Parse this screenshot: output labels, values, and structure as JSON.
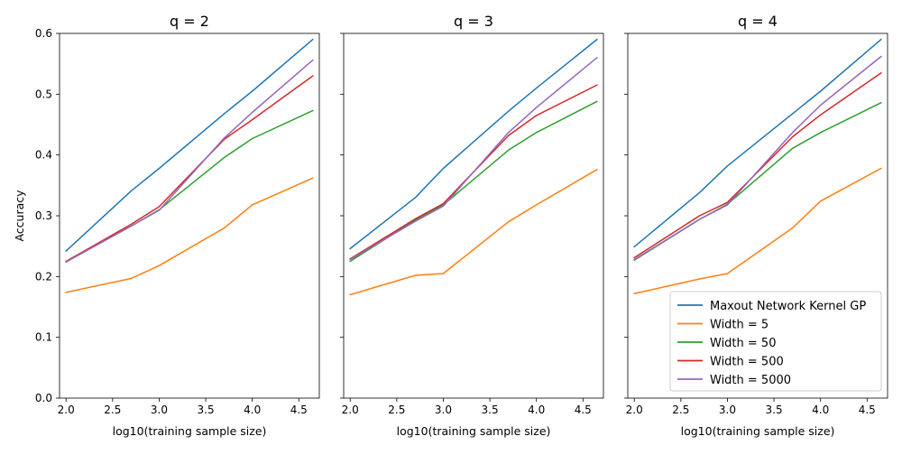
{
  "chart_data": {
    "type": "line",
    "ylabel": "Accuracy",
    "xlabel": "log10(training sample size)",
    "xlim": [
      1.93,
      4.72
    ],
    "ylim": [
      0.0,
      0.6
    ],
    "xticks": [
      "2.0",
      "2.5",
      "3.0",
      "3.5",
      "4.0",
      "4.5"
    ],
    "yticks": [
      "0.0",
      "0.1",
      "0.2",
      "0.3",
      "0.4",
      "0.5",
      "0.6"
    ],
    "legend_location": "lower-right (third panel)",
    "legend": [
      {
        "name": "Maxout Network Kernel GP",
        "color": "#1f77b4"
      },
      {
        "name": "Width = 5",
        "color": "#ff7f0e"
      },
      {
        "name": "Width = 50",
        "color": "#2ca02c"
      },
      {
        "name": "Width = 500",
        "color": "#d62728"
      },
      {
        "name": "Width = 5000",
        "color": "#9467bd"
      }
    ],
    "x": [
      2.0,
      2.7,
      3.0,
      3.7,
      4.0,
      4.65
    ],
    "panels": [
      {
        "title": "q = 2",
        "series": [
          {
            "name": "Maxout Network Kernel GP",
            "color": "#1f77b4",
            "values": [
              0.242,
              0.341,
              0.378,
              0.468,
              0.505,
              0.59
            ]
          },
          {
            "name": "Width = 5",
            "color": "#ff7f0e",
            "values": [
              0.174,
              0.197,
              0.218,
              0.28,
              0.318,
              0.362
            ]
          },
          {
            "name": "Width = 50",
            "color": "#2ca02c",
            "values": [
              0.225,
              0.283,
              0.31,
              0.396,
              0.427,
              0.473
            ]
          },
          {
            "name": "Width = 500",
            "color": "#d62728",
            "values": [
              0.225,
              0.286,
              0.315,
              0.426,
              0.458,
              0.53
            ]
          },
          {
            "name": "Width = 5000",
            "color": "#9467bd",
            "values": [
              0.224,
              0.283,
              0.309,
              0.428,
              0.47,
              0.556
            ]
          }
        ]
      },
      {
        "title": "q = 3",
        "series": [
          {
            "name": "Maxout Network Kernel GP",
            "color": "#1f77b4",
            "values": [
              0.246,
              0.33,
              0.378,
              0.472,
              0.51,
              0.59
            ]
          },
          {
            "name": "Width = 5",
            "color": "#ff7f0e",
            "values": [
              0.17,
              0.202,
              0.205,
              0.29,
              0.318,
              0.376
            ]
          },
          {
            "name": "Width = 50",
            "color": "#2ca02c",
            "values": [
              0.225,
              0.293,
              0.318,
              0.408,
              0.437,
              0.488
            ]
          },
          {
            "name": "Width = 500",
            "color": "#d62728",
            "values": [
              0.229,
              0.295,
              0.32,
              0.432,
              0.465,
              0.515
            ]
          },
          {
            "name": "Width = 5000",
            "color": "#9467bd",
            "values": [
              0.228,
              0.291,
              0.316,
              0.437,
              0.478,
              0.56
            ]
          }
        ]
      },
      {
        "title": "q = 4",
        "series": [
          {
            "name": "Maxout Network Kernel GP",
            "color": "#1f77b4",
            "values": [
              0.249,
              0.338,
              0.382,
              0.468,
              0.505,
              0.59
            ]
          },
          {
            "name": "Width = 5",
            "color": "#ff7f0e",
            "values": [
              0.172,
              0.196,
              0.205,
              0.28,
              0.324,
              0.378
            ]
          },
          {
            "name": "Width = 50",
            "color": "#2ca02c",
            "values": [
              0.227,
              0.294,
              0.319,
              0.411,
              0.437,
              0.486
            ]
          },
          {
            "name": "Width = 500",
            "color": "#d62728",
            "values": [
              0.231,
              0.3,
              0.322,
              0.43,
              0.466,
              0.535
            ]
          },
          {
            "name": "Width = 5000",
            "color": "#9467bd",
            "values": [
              0.228,
              0.294,
              0.318,
              0.437,
              0.482,
              0.562
            ]
          }
        ]
      }
    ]
  }
}
